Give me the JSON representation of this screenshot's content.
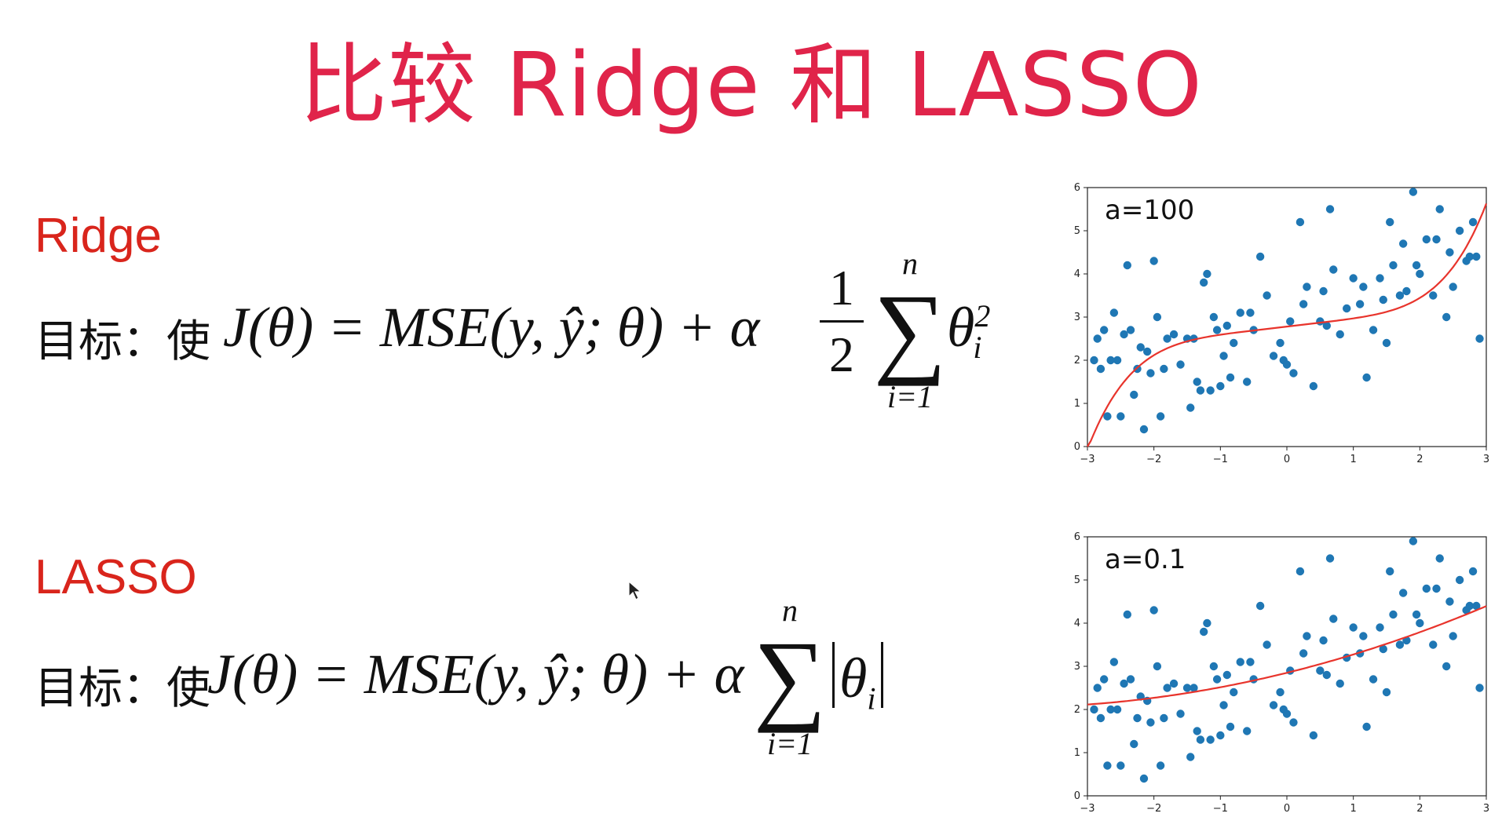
{
  "title": "比较 Ridge 和 LASSO",
  "ridge": {
    "label": "Ridge",
    "prefix": "目标：使",
    "formula_main": "J(θ) = MSE(y, ŷ; θ) + α",
    "frac_num": "1",
    "frac_den": "2",
    "sum_upper": "n",
    "sum_lower": "i=1",
    "term": "θ",
    "term_sup": "2",
    "term_sub": "i"
  },
  "lasso": {
    "label": "LASSO",
    "prefix": "目标：使",
    "formula_main": "J(θ) = MSE(y, ŷ; θ) + α",
    "sum_upper": "n",
    "sum_lower": "i=1",
    "term": "θ",
    "term_sub": "i"
  },
  "colors": {
    "title": "#e0244a",
    "label": "#d9251c",
    "points": "#1f77b4",
    "curve": "#e8342c"
  },
  "chart_data": [
    {
      "type": "scatter",
      "annotation": "a=100",
      "xlim": [
        -3,
        3
      ],
      "ylim": [
        0,
        6
      ],
      "xticks": [
        "−3",
        "−2",
        "−1",
        "0",
        "1",
        "2",
        "3"
      ],
      "yticks": [
        "0",
        "1",
        "2",
        "3",
        "4",
        "5",
        "6"
      ],
      "x": [
        -2.9,
        -2.85,
        -2.8,
        -2.75,
        -2.7,
        -2.65,
        -2.6,
        -2.55,
        -2.5,
        -2.45,
        -2.4,
        -2.35,
        -2.3,
        -2.25,
        -2.2,
        -2.15,
        -2.1,
        -2.05,
        -2.0,
        -1.95,
        -1.9,
        -1.85,
        -1.8,
        -1.7,
        -1.6,
        -1.5,
        -1.45,
        -1.4,
        -1.35,
        -1.3,
        -1.25,
        -1.2,
        -1.15,
        -1.1,
        -1.05,
        -1.0,
        -0.95,
        -0.9,
        -0.85,
        -0.8,
        -0.7,
        -0.6,
        -0.55,
        -0.5,
        -0.4,
        -0.3,
        -0.2,
        -0.1,
        -0.05,
        0.0,
        0.05,
        0.1,
        0.2,
        0.25,
        0.3,
        0.4,
        0.5,
        0.55,
        0.6,
        0.65,
        0.7,
        0.8,
        0.9,
        1.0,
        1.1,
        1.15,
        1.2,
        1.3,
        1.4,
        1.45,
        1.5,
        1.55,
        1.6,
        1.7,
        1.75,
        1.8,
        1.9,
        1.95,
        2.0,
        2.1,
        2.2,
        2.25,
        2.3,
        2.4,
        2.45,
        2.5,
        2.6,
        2.7,
        2.75,
        2.8,
        2.85,
        2.9
      ],
      "y": [
        2.0,
        2.5,
        1.8,
        2.7,
        0.7,
        2.0,
        3.1,
        2.0,
        0.7,
        2.6,
        4.2,
        2.7,
        1.2,
        1.8,
        2.3,
        0.4,
        2.2,
        1.7,
        4.3,
        3.0,
        0.7,
        1.8,
        2.5,
        2.6,
        1.9,
        2.5,
        0.9,
        2.5,
        1.5,
        1.3,
        3.8,
        4.0,
        1.3,
        3.0,
        2.7,
        1.4,
        2.1,
        2.8,
        1.6,
        2.4,
        3.1,
        1.5,
        3.1,
        2.7,
        4.4,
        3.5,
        2.1,
        2.4,
        2.0,
        1.9,
        2.9,
        1.7,
        5.2,
        3.3,
        3.7,
        1.4,
        2.9,
        3.6,
        2.8,
        5.5,
        4.1,
        2.6,
        3.2,
        3.9,
        3.3,
        3.7,
        1.6,
        2.7,
        3.9,
        3.4,
        2.4,
        5.2,
        4.2,
        3.5,
        4.7,
        3.6,
        5.9,
        4.2,
        4.0,
        4.8,
        3.5,
        4.8,
        5.5,
        3.0,
        4.5,
        3.7,
        5.0,
        4.3,
        4.4,
        5.2,
        4.4,
        2.5
      ]
    },
    {
      "type": "scatter",
      "annotation": "a=0.1",
      "xlim": [
        -3,
        3
      ],
      "ylim": [
        0,
        6
      ],
      "xticks": [
        "−3",
        "−2",
        "−1",
        "0",
        "1",
        "2",
        "3"
      ],
      "yticks": [
        "0",
        "1",
        "2",
        "3",
        "4",
        "5",
        "6"
      ]
    }
  ]
}
